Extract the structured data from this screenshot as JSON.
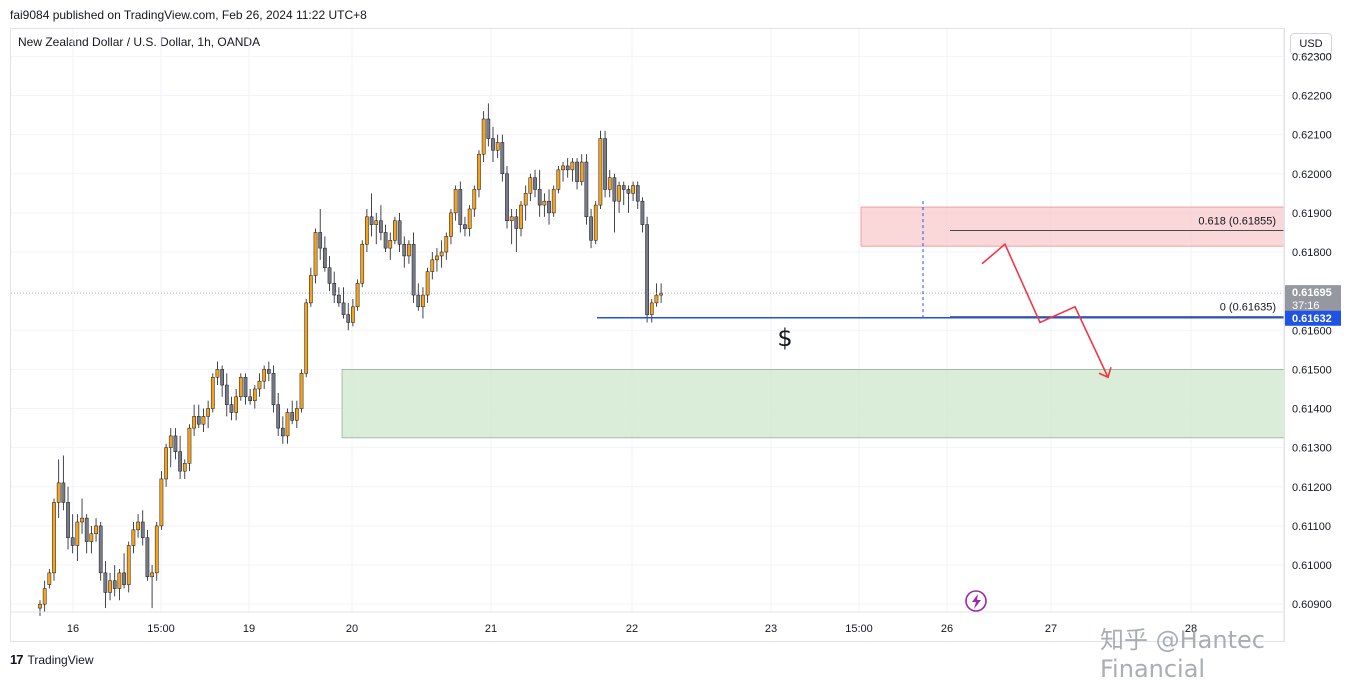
{
  "header": {
    "published": "fai9084 published on TradingView.com, Feb 26, 2024 11:22 UTC+8",
    "symbol": "New Zealand Dollar / U.S. Dollar, 1h, OANDA",
    "currency": "USD"
  },
  "footer": {
    "brand": "TradingView",
    "watermark": "知乎 @Hantec Financial"
  },
  "colors": {
    "up_fill": "#f7a21b",
    "down_fill": "#787b86",
    "wick": "#131722",
    "support": "#1e53e5",
    "arrow": "#f23645",
    "fib_zone": "#f8c9cc",
    "demand_zone": "#d5ebd5",
    "current_price_tag": "#9598a1"
  },
  "annotations": {
    "fib_618": "0.618 (0.61855)",
    "fib_0": "0 (0.61635)",
    "dollar": "$"
  },
  "chart_data": {
    "type": "candlestick",
    "title": "New Zealand Dollar / U.S. Dollar, 1h, OANDA",
    "ylim": [
      0.6088,
      0.6237
    ],
    "y_ticks": [
      "0.62300",
      "0.62200",
      "0.62100",
      "0.62000",
      "0.61900",
      "0.61800",
      "0.61700",
      "0.61600",
      "0.61500",
      "0.61400",
      "0.61300",
      "0.61200",
      "0.61100",
      "0.61000",
      "0.60900"
    ],
    "x_ticks": [
      "16",
      "15:00",
      "19",
      "20",
      "21",
      "22",
      "23",
      "15:00",
      "26",
      "27",
      "28"
    ],
    "current_price": "0.61695",
    "countdown": "37:16",
    "support_price": "0.61632",
    "levels": {
      "fib_618": 0.61855,
      "fib_0": 0.61635,
      "support": 0.61632
    },
    "zones": [
      {
        "name": "supply",
        "top": 0.61915,
        "bottom": 0.61815
      },
      {
        "name": "demand",
        "top": 0.615,
        "bottom": 0.61325
      }
    ],
    "projection": [
      0.6177,
      0.6182,
      0.6162,
      0.6166,
      0.6148
    ],
    "candles": [
      [
        0.6089,
        0.6091,
        0.6087,
        0.609
      ],
      [
        0.609,
        0.6096,
        0.6088,
        0.6094
      ],
      [
        0.6095,
        0.6099,
        0.6094,
        0.6098
      ],
      [
        0.6098,
        0.6117,
        0.6096,
        0.6116
      ],
      [
        0.6116,
        0.6127,
        0.6112,
        0.6121
      ],
      [
        0.6121,
        0.6128,
        0.6114,
        0.6116
      ],
      [
        0.6116,
        0.612,
        0.6104,
        0.6107
      ],
      [
        0.6107,
        0.6113,
        0.6103,
        0.6105
      ],
      [
        0.6105,
        0.6113,
        0.6101,
        0.6111
      ],
      [
        0.6111,
        0.6117,
        0.6108,
        0.6112
      ],
      [
        0.6112,
        0.6113,
        0.6103,
        0.6106
      ],
      [
        0.6106,
        0.611,
        0.6103,
        0.6108
      ],
      [
        0.6108,
        0.6112,
        0.6106,
        0.611
      ],
      [
        0.611,
        0.6111,
        0.6096,
        0.6098
      ],
      [
        0.6098,
        0.6101,
        0.6089,
        0.6093
      ],
      [
        0.6093,
        0.6098,
        0.6091,
        0.6096
      ],
      [
        0.6096,
        0.61,
        0.6092,
        0.6094
      ],
      [
        0.6094,
        0.6099,
        0.6091,
        0.6098
      ],
      [
        0.6098,
        0.6103,
        0.6094,
        0.6095
      ],
      [
        0.6095,
        0.6106,
        0.6093,
        0.6105
      ],
      [
        0.6105,
        0.6111,
        0.6103,
        0.6109
      ],
      [
        0.6109,
        0.6113,
        0.6107,
        0.6111
      ],
      [
        0.6111,
        0.6114,
        0.6105,
        0.6107
      ],
      [
        0.6107,
        0.6109,
        0.6096,
        0.6097
      ],
      [
        0.6097,
        0.61,
        0.6089,
        0.6098
      ],
      [
        0.6098,
        0.6111,
        0.6096,
        0.611
      ],
      [
        0.611,
        0.6124,
        0.6109,
        0.6122
      ],
      [
        0.6122,
        0.6131,
        0.612,
        0.613
      ],
      [
        0.613,
        0.6135,
        0.6125,
        0.6133
      ],
      [
        0.6133,
        0.6135,
        0.6127,
        0.6129
      ],
      [
        0.6129,
        0.6133,
        0.6122,
        0.6124
      ],
      [
        0.6124,
        0.6127,
        0.6122,
        0.6126
      ],
      [
        0.6126,
        0.6136,
        0.6124,
        0.6135
      ],
      [
        0.6135,
        0.6141,
        0.6133,
        0.6138
      ],
      [
        0.6138,
        0.6141,
        0.6135,
        0.6136
      ],
      [
        0.6136,
        0.614,
        0.6134,
        0.6138
      ],
      [
        0.6138,
        0.6142,
        0.6135,
        0.614
      ],
      [
        0.614,
        0.6149,
        0.6139,
        0.6148
      ],
      [
        0.6148,
        0.6152,
        0.6146,
        0.615
      ],
      [
        0.615,
        0.6151,
        0.6143,
        0.6146
      ],
      [
        0.6146,
        0.6149,
        0.6138,
        0.6141
      ],
      [
        0.6141,
        0.6143,
        0.6137,
        0.6139
      ],
      [
        0.6139,
        0.6145,
        0.6137,
        0.6143
      ],
      [
        0.6143,
        0.6149,
        0.6142,
        0.6148
      ],
      [
        0.6148,
        0.6149,
        0.6141,
        0.6143
      ],
      [
        0.6143,
        0.6145,
        0.6141,
        0.6142
      ],
      [
        0.6142,
        0.6146,
        0.614,
        0.6145
      ],
      [
        0.6145,
        0.6149,
        0.6143,
        0.6147
      ],
      [
        0.6147,
        0.6151,
        0.6145,
        0.615
      ],
      [
        0.615,
        0.6152,
        0.6147,
        0.6149
      ],
      [
        0.6149,
        0.6151,
        0.6139,
        0.6141
      ],
      [
        0.6141,
        0.6144,
        0.6133,
        0.6135
      ],
      [
        0.6135,
        0.6138,
        0.6131,
        0.6133
      ],
      [
        0.6133,
        0.614,
        0.6131,
        0.6139
      ],
      [
        0.6139,
        0.6142,
        0.6136,
        0.6137
      ],
      [
        0.6137,
        0.6142,
        0.6135,
        0.614
      ],
      [
        0.614,
        0.615,
        0.6139,
        0.6149
      ],
      [
        0.6149,
        0.6168,
        0.6148,
        0.6167
      ],
      [
        0.6167,
        0.6176,
        0.6166,
        0.6174
      ],
      [
        0.6174,
        0.6186,
        0.6172,
        0.6185
      ],
      [
        0.6185,
        0.6191,
        0.6178,
        0.6181
      ],
      [
        0.6181,
        0.6184,
        0.6175,
        0.6176
      ],
      [
        0.6176,
        0.6179,
        0.617,
        0.6172
      ],
      [
        0.6172,
        0.6175,
        0.6167,
        0.6169
      ],
      [
        0.6169,
        0.6171,
        0.6166,
        0.6167
      ],
      [
        0.6167,
        0.6171,
        0.6163,
        0.6164
      ],
      [
        0.6164,
        0.6167,
        0.616,
        0.6162
      ],
      [
        0.6162,
        0.6168,
        0.6161,
        0.6166
      ],
      [
        0.6166,
        0.6173,
        0.6165,
        0.6172
      ],
      [
        0.6172,
        0.6183,
        0.6171,
        0.6182
      ],
      [
        0.6182,
        0.6191,
        0.618,
        0.6189
      ],
      [
        0.6189,
        0.6195,
        0.6184,
        0.6187
      ],
      [
        0.6187,
        0.619,
        0.6182,
        0.6188
      ],
      [
        0.6188,
        0.6192,
        0.6183,
        0.6185
      ],
      [
        0.6185,
        0.6187,
        0.618,
        0.6181
      ],
      [
        0.6181,
        0.6185,
        0.6178,
        0.6183
      ],
      [
        0.6183,
        0.6189,
        0.6182,
        0.6188
      ],
      [
        0.6188,
        0.619,
        0.618,
        0.6182
      ],
      [
        0.6182,
        0.6184,
        0.6176,
        0.6179
      ],
      [
        0.6179,
        0.6183,
        0.6177,
        0.6182
      ],
      [
        0.6182,
        0.6185,
        0.6167,
        0.6169
      ],
      [
        0.6169,
        0.6172,
        0.6165,
        0.6166
      ],
      [
        0.6166,
        0.6171,
        0.6163,
        0.6169
      ],
      [
        0.6169,
        0.6176,
        0.6167,
        0.6175
      ],
      [
        0.6175,
        0.618,
        0.6173,
        0.6178
      ],
      [
        0.6178,
        0.6181,
        0.6175,
        0.6179
      ],
      [
        0.6179,
        0.6183,
        0.6176,
        0.618
      ],
      [
        0.618,
        0.6185,
        0.6178,
        0.6184
      ],
      [
        0.6184,
        0.6191,
        0.6182,
        0.619
      ],
      [
        0.619,
        0.6197,
        0.6188,
        0.6196
      ],
      [
        0.6196,
        0.6198,
        0.6185,
        0.6187
      ],
      [
        0.6187,
        0.6189,
        0.6184,
        0.6186
      ],
      [
        0.6186,
        0.6192,
        0.6184,
        0.6191
      ],
      [
        0.6191,
        0.6197,
        0.6189,
        0.6196
      ],
      [
        0.6196,
        0.6206,
        0.6194,
        0.6205
      ],
      [
        0.6205,
        0.6216,
        0.6203,
        0.6214
      ],
      [
        0.6214,
        0.6218,
        0.6207,
        0.6209
      ],
      [
        0.6209,
        0.6212,
        0.6203,
        0.6206
      ],
      [
        0.6206,
        0.621,
        0.6204,
        0.6208
      ],
      [
        0.6208,
        0.621,
        0.6198,
        0.62
      ],
      [
        0.62,
        0.6202,
        0.6186,
        0.6188
      ],
      [
        0.6188,
        0.6191,
        0.6182,
        0.6189
      ],
      [
        0.6189,
        0.6191,
        0.618,
        0.6186
      ],
      [
        0.6186,
        0.6193,
        0.6184,
        0.6192
      ],
      [
        0.6192,
        0.6197,
        0.6188,
        0.6195
      ],
      [
        0.6195,
        0.62,
        0.6193,
        0.6199
      ],
      [
        0.6199,
        0.6201,
        0.6194,
        0.6196
      ],
      [
        0.6196,
        0.6201,
        0.6189,
        0.6192
      ],
      [
        0.6192,
        0.6195,
        0.6189,
        0.6193
      ],
      [
        0.6193,
        0.6196,
        0.6187,
        0.619
      ],
      [
        0.619,
        0.6197,
        0.6189,
        0.6196
      ],
      [
        0.6196,
        0.6202,
        0.6195,
        0.6201
      ],
      [
        0.6201,
        0.6203,
        0.6198,
        0.6202
      ],
      [
        0.6202,
        0.6204,
        0.6199,
        0.6201
      ],
      [
        0.6201,
        0.6204,
        0.6198,
        0.6203
      ],
      [
        0.6203,
        0.6204,
        0.6196,
        0.6198
      ],
      [
        0.6198,
        0.6205,
        0.6197,
        0.6203
      ],
      [
        0.6203,
        0.6205,
        0.6187,
        0.6189
      ],
      [
        0.6189,
        0.6191,
        0.6181,
        0.6183
      ],
      [
        0.6183,
        0.6193,
        0.6182,
        0.6192
      ],
      [
        0.6192,
        0.6211,
        0.6191,
        0.6209
      ],
      [
        0.6209,
        0.6211,
        0.6194,
        0.6196
      ],
      [
        0.6196,
        0.6201,
        0.6194,
        0.6199
      ],
      [
        0.6199,
        0.62,
        0.6185,
        0.6193
      ],
      [
        0.6193,
        0.6198,
        0.619,
        0.6197
      ],
      [
        0.6197,
        0.6198,
        0.6192,
        0.6196
      ],
      [
        0.6196,
        0.6197,
        0.619,
        0.6195
      ],
      [
        0.6195,
        0.6198,
        0.6193,
        0.6197
      ],
      [
        0.6197,
        0.6198,
        0.6191,
        0.6193
      ],
      [
        0.6193,
        0.6194,
        0.6185,
        0.6187
      ],
      [
        0.6187,
        0.6189,
        0.6162,
        0.6164
      ],
      [
        0.6164,
        0.6168,
        0.6162,
        0.6167
      ],
      [
        0.6167,
        0.6172,
        0.6166,
        0.6169
      ],
      [
        0.6169,
        0.6172,
        0.6167,
        0.61695
      ]
    ]
  }
}
